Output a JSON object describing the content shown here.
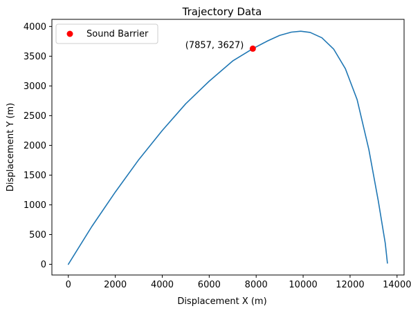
{
  "chart_data": {
    "type": "scatter",
    "title": "Trajectory Data",
    "xlabel": "Displacement X (m)",
    "ylabel": "Displacement Y (m)",
    "xlim": [
      -700,
      14300
    ],
    "ylim": [
      -180,
      4120
    ],
    "xticks": [
      0,
      2000,
      4000,
      6000,
      8000,
      10000,
      12000,
      14000
    ],
    "yticks": [
      0,
      500,
      1000,
      1500,
      2000,
      2500,
      3000,
      3500,
      4000
    ],
    "grid": false,
    "legend_position": "top-left",
    "series": [
      {
        "kind": "line",
        "color": "#1f77b4",
        "x": [
          0,
          1000,
          2000,
          3000,
          4000,
          5000,
          6000,
          7000,
          7857,
          8500,
          9000,
          9500,
          9900,
          10300,
          10800,
          11300,
          11800,
          12300,
          12800,
          13200,
          13500,
          13590
        ],
        "y": [
          0,
          635,
          1215,
          1760,
          2250,
          2700,
          3080,
          3420,
          3627,
          3760,
          3850,
          3905,
          3920,
          3900,
          3810,
          3620,
          3290,
          2770,
          1930,
          1070,
          350,
          20
        ]
      },
      {
        "kind": "scatter",
        "name": "Sound Barrier",
        "color": "#ff0000",
        "x": [
          7857
        ],
        "y": [
          3627
        ]
      }
    ],
    "annotations": [
      {
        "text": "(7857, 3627)",
        "x": 7857,
        "y": 3627
      }
    ]
  }
}
